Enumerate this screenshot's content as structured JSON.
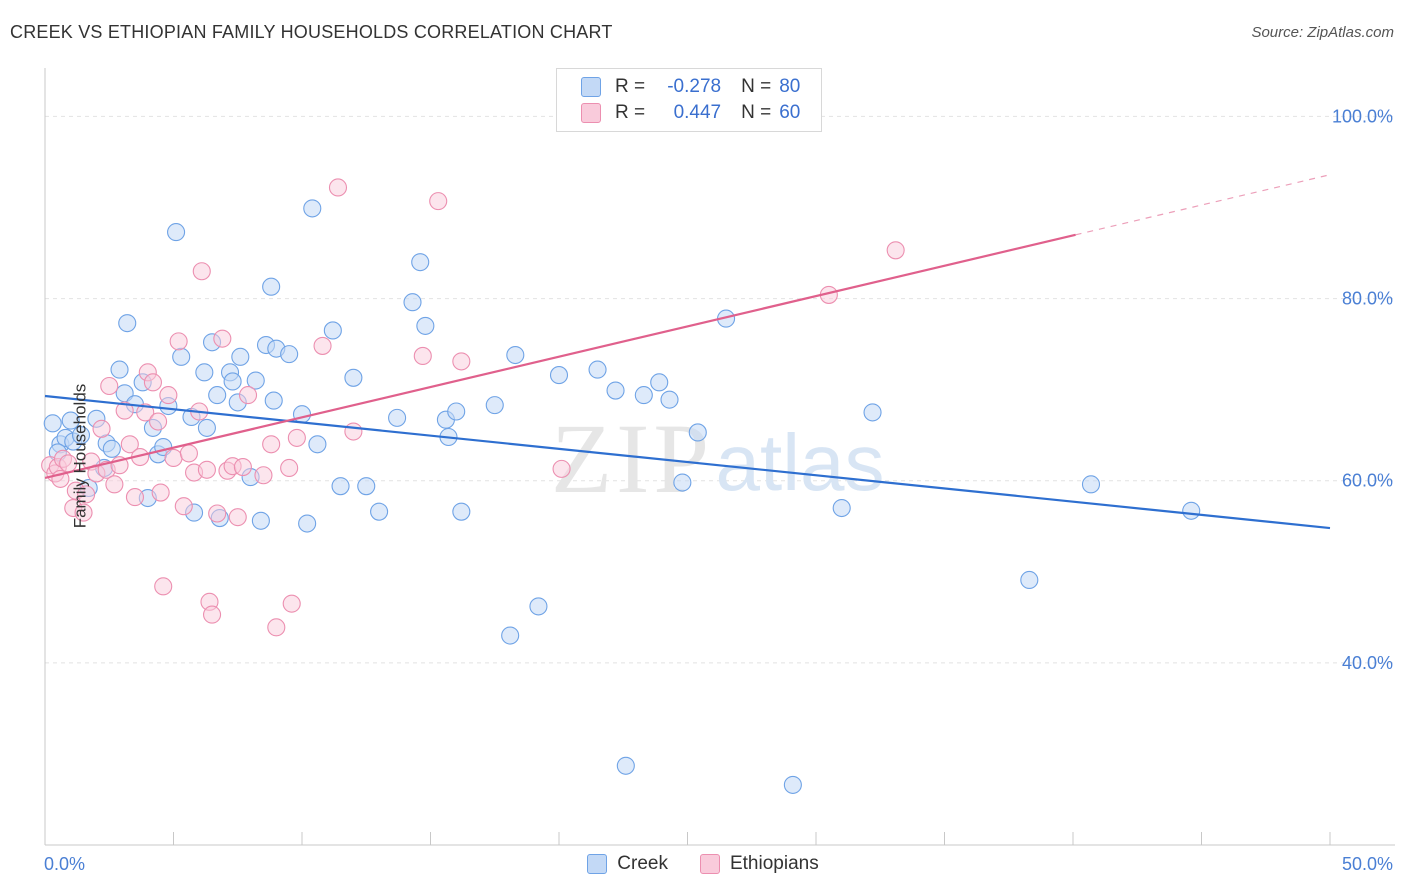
{
  "header": {
    "title": "CREEK VS ETHIOPIAN FAMILY HOUSEHOLDS CORRELATION CHART",
    "source": "Source: ZipAtlas.com"
  },
  "watermark": {
    "zip": "ZIP",
    "atlas": "atlas"
  },
  "legend": {
    "rows": [
      {
        "r_label": "R =",
        "r_value": "-0.278",
        "n_label": "N =",
        "n_value": "80"
      },
      {
        "r_label": "R =",
        "r_value": "0.447",
        "n_label": "N =",
        "n_value": "60"
      }
    ]
  },
  "colors": {
    "creek": "#6fa3e6",
    "creek_fill": "#c3d9f6",
    "creek_line": "#2e6fd0",
    "ethiopians": "#ec8fb0",
    "ethiopians_fill": "#f9cbdb",
    "ethiopians_line": "#e0608c",
    "tick_label": "#4a7fd4",
    "grid": "#e2e2e2"
  },
  "chart_data": {
    "type": "scatter",
    "title": "CREEK VS ETHIOPIAN FAMILY HOUSEHOLDS CORRELATION CHART",
    "xlabel": "",
    "ylabel": "Family Households",
    "xlim": [
      0,
      50
    ],
    "ylim": [
      20,
      104
    ],
    "x_tick_labels": [
      "0.0%",
      "50.0%"
    ],
    "y_ticks": [
      40,
      60,
      80,
      100
    ],
    "y_tick_labels": [
      "40.0%",
      "60.0%",
      "80.0%",
      "100.0%"
    ],
    "grid": true,
    "legend_position": "top-center",
    "series": [
      {
        "name": "Creek",
        "r": -0.278,
        "n": 80,
        "trend": {
          "x": [
            0,
            50
          ],
          "y": [
            69.3,
            54.8
          ]
        },
        "points": [
          [
            0.3,
            66.3
          ],
          [
            0.6,
            64.0
          ],
          [
            0.8,
            64.7
          ],
          [
            1.0,
            66.6
          ],
          [
            1.1,
            64.3
          ],
          [
            1.4,
            65.0
          ],
          [
            1.7,
            59.2
          ],
          [
            2.0,
            66.8
          ],
          [
            2.3,
            61.4
          ],
          [
            2.4,
            64.1
          ],
          [
            2.6,
            63.5
          ],
          [
            2.9,
            72.2
          ],
          [
            3.1,
            69.6
          ],
          [
            3.2,
            77.3
          ],
          [
            3.5,
            68.4
          ],
          [
            3.8,
            70.8
          ],
          [
            4.0,
            58.1
          ],
          [
            4.2,
            65.8
          ],
          [
            4.4,
            62.9
          ],
          [
            4.6,
            63.7
          ],
          [
            4.8,
            68.2
          ],
          [
            5.1,
            87.3
          ],
          [
            5.3,
            73.6
          ],
          [
            5.7,
            67.0
          ],
          [
            5.8,
            56.5
          ],
          [
            6.2,
            71.9
          ],
          [
            6.3,
            65.8
          ],
          [
            6.5,
            75.2
          ],
          [
            6.7,
            69.4
          ],
          [
            6.8,
            55.9
          ],
          [
            7.2,
            71.9
          ],
          [
            7.3,
            70.9
          ],
          [
            7.5,
            68.6
          ],
          [
            7.6,
            73.6
          ],
          [
            8.0,
            60.4
          ],
          [
            8.2,
            71.0
          ],
          [
            8.4,
            55.6
          ],
          [
            8.6,
            74.9
          ],
          [
            8.8,
            81.3
          ],
          [
            8.9,
            68.8
          ],
          [
            9.0,
            74.5
          ],
          [
            9.5,
            73.9
          ],
          [
            10.0,
            67.3
          ],
          [
            10.2,
            55.3
          ],
          [
            10.4,
            89.9
          ],
          [
            10.6,
            64.0
          ],
          [
            11.2,
            76.5
          ],
          [
            11.5,
            59.4
          ],
          [
            12.0,
            71.3
          ],
          [
            12.5,
            59.4
          ],
          [
            13.0,
            56.6
          ],
          [
            13.7,
            66.9
          ],
          [
            14.3,
            79.6
          ],
          [
            14.6,
            84.0
          ],
          [
            14.8,
            77.0
          ],
          [
            15.6,
            66.7
          ],
          [
            15.7,
            64.8
          ],
          [
            16.0,
            67.6
          ],
          [
            16.2,
            56.6
          ],
          [
            17.5,
            68.3
          ],
          [
            18.1,
            43.0
          ],
          [
            18.3,
            73.8
          ],
          [
            19.2,
            46.2
          ],
          [
            20.0,
            71.6
          ],
          [
            21.5,
            72.2
          ],
          [
            22.2,
            69.9
          ],
          [
            22.6,
            28.7
          ],
          [
            23.3,
            69.4
          ],
          [
            23.9,
            70.8
          ],
          [
            24.3,
            68.9
          ],
          [
            24.8,
            59.8
          ],
          [
            25.4,
            65.3
          ],
          [
            26.5,
            77.8
          ],
          [
            29.1,
            26.6
          ],
          [
            31.0,
            57.0
          ],
          [
            32.2,
            67.5
          ],
          [
            38.3,
            49.1
          ],
          [
            40.7,
            59.6
          ],
          [
            44.6,
            56.7
          ],
          [
            0.5,
            63.1
          ]
        ]
      },
      {
        "name": "Ethiopians",
        "r": 0.447,
        "n": 60,
        "trend": {
          "x": [
            0,
            40.1
          ],
          "y": [
            60.3,
            87.0
          ]
        },
        "trend_dashed": {
          "x": [
            40.1,
            50
          ],
          "y": [
            87.0,
            93.6
          ]
        },
        "points": [
          [
            0.2,
            61.7
          ],
          [
            0.4,
            60.8
          ],
          [
            0.5,
            61.5
          ],
          [
            0.6,
            60.2
          ],
          [
            0.7,
            62.4
          ],
          [
            0.9,
            61.9
          ],
          [
            1.1,
            57.0
          ],
          [
            1.2,
            58.9
          ],
          [
            1.5,
            56.5
          ],
          [
            1.6,
            58.5
          ],
          [
            1.8,
            62.1
          ],
          [
            2.0,
            60.8
          ],
          [
            2.2,
            65.7
          ],
          [
            2.4,
            61.2
          ],
          [
            2.5,
            70.4
          ],
          [
            2.7,
            59.6
          ],
          [
            2.9,
            61.7
          ],
          [
            3.1,
            67.7
          ],
          [
            3.3,
            64.0
          ],
          [
            3.5,
            58.2
          ],
          [
            3.7,
            62.6
          ],
          [
            3.9,
            67.5
          ],
          [
            4.0,
            71.9
          ],
          [
            4.2,
            70.8
          ],
          [
            4.4,
            66.5
          ],
          [
            4.5,
            58.7
          ],
          [
            4.6,
            48.4
          ],
          [
            4.8,
            69.4
          ],
          [
            5.0,
            62.5
          ],
          [
            5.2,
            75.3
          ],
          [
            5.4,
            57.2
          ],
          [
            5.6,
            63.0
          ],
          [
            5.8,
            60.9
          ],
          [
            6.0,
            67.6
          ],
          [
            6.1,
            83.0
          ],
          [
            6.3,
            61.2
          ],
          [
            6.4,
            46.7
          ],
          [
            6.5,
            45.3
          ],
          [
            6.7,
            56.4
          ],
          [
            6.9,
            75.6
          ],
          [
            7.1,
            61.1
          ],
          [
            7.3,
            61.6
          ],
          [
            7.5,
            56.0
          ],
          [
            7.7,
            61.5
          ],
          [
            7.9,
            69.4
          ],
          [
            8.5,
            60.6
          ],
          [
            8.8,
            64.0
          ],
          [
            9.0,
            43.9
          ],
          [
            9.5,
            61.4
          ],
          [
            9.6,
            46.5
          ],
          [
            9.8,
            64.7
          ],
          [
            10.8,
            74.8
          ],
          [
            11.4,
            92.2
          ],
          [
            12.0,
            65.4
          ],
          [
            14.7,
            73.7
          ],
          [
            15.3,
            90.7
          ],
          [
            16.2,
            73.1
          ],
          [
            20.1,
            61.3
          ],
          [
            30.5,
            80.4
          ],
          [
            33.1,
            85.3
          ]
        ]
      }
    ]
  }
}
